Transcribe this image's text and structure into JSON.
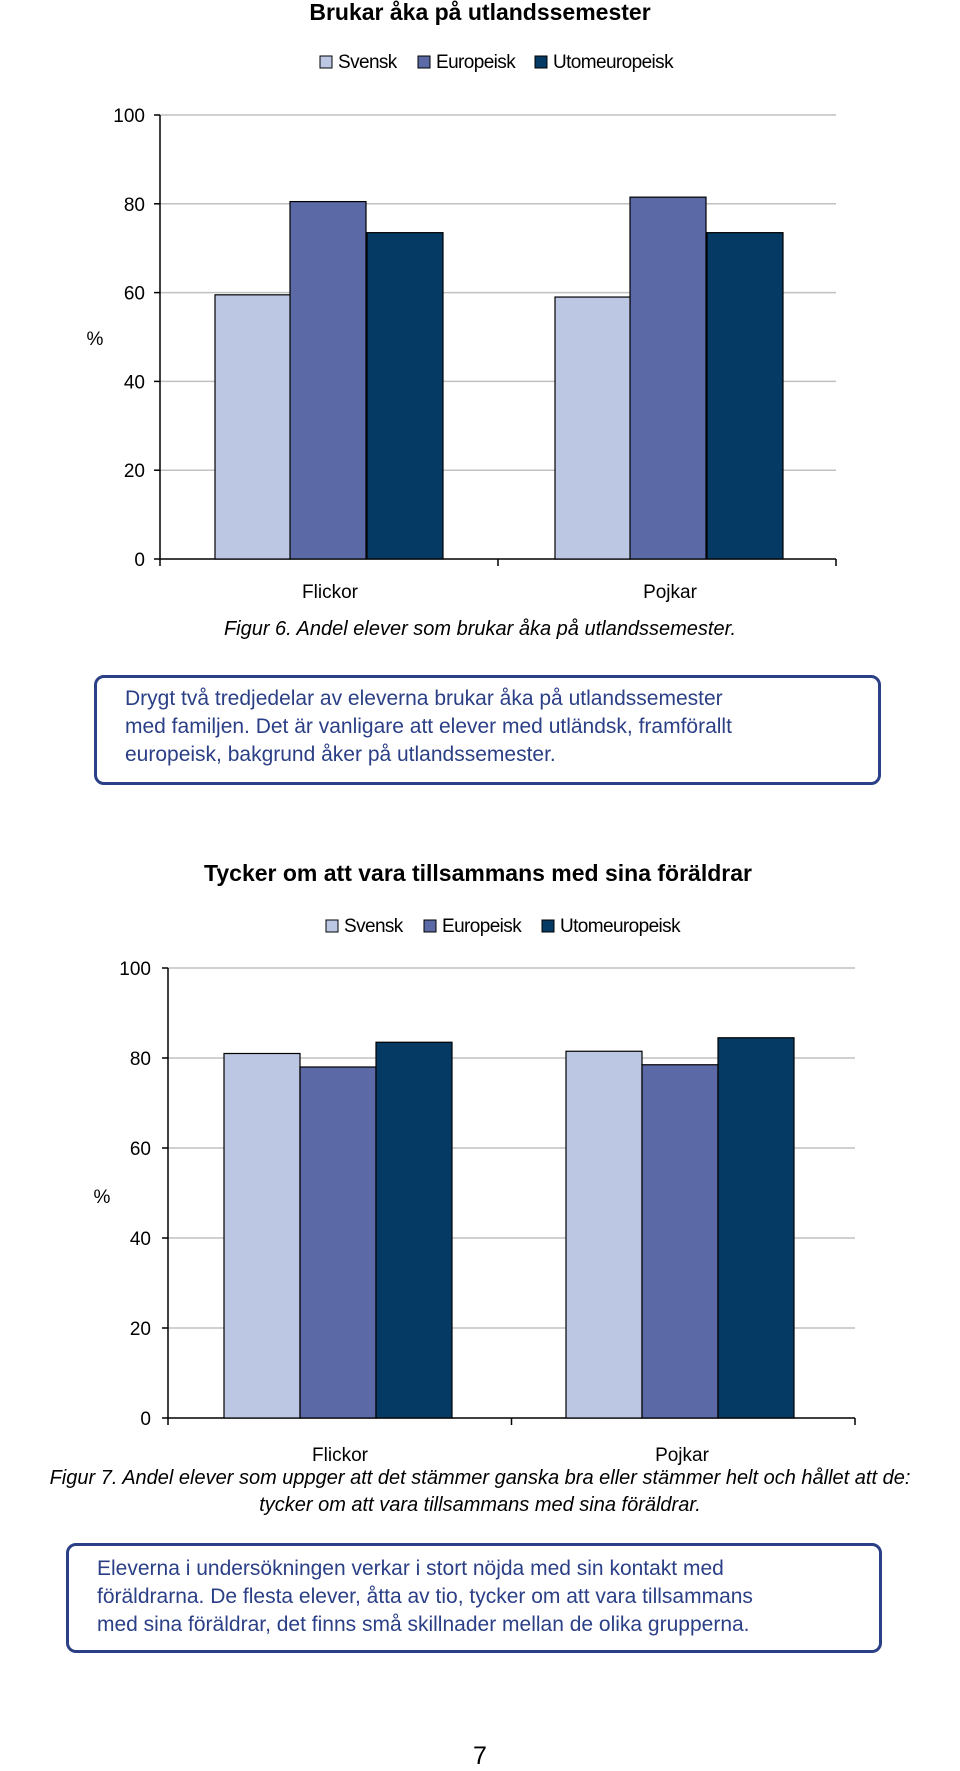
{
  "colors": {
    "svensk": "#bcc7e3",
    "europeisk": "#5b6aa6",
    "utomeuropeisk": "#043a63",
    "gridline": "#c0c0c0",
    "note_text": "#2a3f86",
    "note_border": "#2a3f86"
  },
  "chart_data": [
    {
      "type": "bar",
      "title": "Brukar åka på utlandssemester",
      "ylabel": "%",
      "xlabel": "",
      "ylim": [
        0,
        100
      ],
      "yticks": [
        "0",
        "20",
        "40",
        "60",
        "80",
        "100"
      ],
      "categories": [
        "Flickor",
        "Pojkar"
      ],
      "legend_position": "top",
      "grid": true,
      "series": [
        {
          "name": "Svensk",
          "values": [
            59.5,
            59
          ]
        },
        {
          "name": "Europeisk",
          "values": [
            80.5,
            81.5
          ]
        },
        {
          "name": "Utomeuropeisk",
          "values": [
            73.5,
            73.5
          ]
        }
      ]
    },
    {
      "type": "bar",
      "title": "Tycker om att vara tillsammans med sina föräldrar",
      "ylabel": "%",
      "xlabel": "",
      "ylim": [
        0,
        100
      ],
      "yticks": [
        "0",
        "20",
        "40",
        "60",
        "80",
        "100"
      ],
      "categories": [
        "Flickor",
        "Pojkar"
      ],
      "legend_position": "top",
      "grid": true,
      "series": [
        {
          "name": "Svensk",
          "values": [
            81,
            81.5
          ]
        },
        {
          "name": "Europeisk",
          "values": [
            78,
            78.5
          ]
        },
        {
          "name": "Utomeuropeisk",
          "values": [
            83.5,
            84.5
          ]
        }
      ]
    }
  ],
  "captions": {
    "figure6": "Figur 6. Andel elever som brukar åka på utlandssemester.",
    "figure7_line1": "Figur 7. Andel elever som uppger att det stämmer ganska bra eller stämmer helt och hållet att de:",
    "figure7_line2": "tycker om att vara tillsammans med sina föräldrar."
  },
  "notes": {
    "note1_lines": [
      "Drygt två tredjedelar av eleverna brukar åka på utlandssemester",
      "med familjen. Det är vanligare att elever med utländsk, framförallt",
      "europeisk, bakgrund åker på utlandssemester."
    ],
    "note2_lines": [
      "Eleverna i undersökningen verkar i stort nöjda med sin kontakt med",
      "föräldrarna. De flesta elever, åtta av tio, tycker om att vara tillsammans",
      "med sina föräldrar, det finns små skillnader mellan de olika grupperna."
    ]
  },
  "page_number": "7"
}
